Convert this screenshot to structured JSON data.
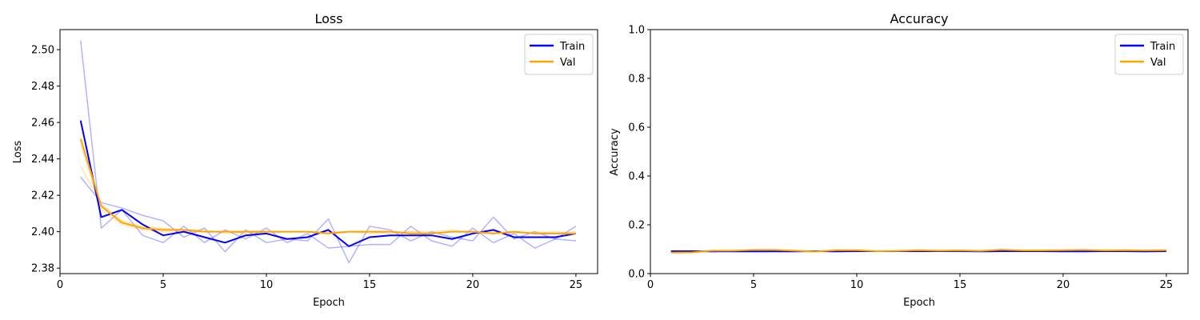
{
  "chart_data": [
    {
      "type": "line",
      "title": "Loss",
      "xlabel": "Epoch",
      "ylabel": "Loss",
      "xlim": [
        0,
        26.05
      ],
      "ylim": [
        2.377,
        2.511
      ],
      "xticks": [
        0,
        5,
        10,
        15,
        20,
        25
      ],
      "yticks": [
        2.38,
        2.4,
        2.42,
        2.44,
        2.46,
        2.48,
        2.5
      ],
      "ytick_labels": [
        "2.38",
        "2.40",
        "2.42",
        "2.44",
        "2.46",
        "2.48",
        "2.50"
      ],
      "legend_position": "top-right",
      "x": [
        1,
        2,
        3,
        4,
        5,
        6,
        7,
        8,
        9,
        10,
        11,
        12,
        13,
        14,
        15,
        16,
        17,
        18,
        19,
        20,
        21,
        22,
        23,
        24,
        25
      ],
      "series": [
        {
          "name": "Train",
          "color": "#0000ff",
          "role": "main",
          "values": [
            2.461,
            2.408,
            2.412,
            2.404,
            2.398,
            2.4,
            2.397,
            2.394,
            2.398,
            2.399,
            2.396,
            2.397,
            2.401,
            2.392,
            2.397,
            2.398,
            2.398,
            2.398,
            2.396,
            2.399,
            2.401,
            2.397,
            2.397,
            2.397,
            2.399
          ]
        },
        {
          "name": "",
          "color": "#0000ff",
          "role": "faint",
          "values": [
            2.505,
            2.402,
            2.412,
            2.398,
            2.394,
            2.403,
            2.394,
            2.401,
            2.396,
            2.402,
            2.394,
            2.399,
            2.391,
            2.392,
            2.393,
            2.393,
            2.403,
            2.395,
            2.392,
            2.402,
            2.394,
            2.399,
            2.391,
            2.396,
            2.395
          ]
        },
        {
          "name": "",
          "color": "#0000ff",
          "role": "faint",
          "values": [
            2.43,
            2.416,
            2.413,
            2.409,
            2.406,
            2.397,
            2.402,
            2.389,
            2.401,
            2.394,
            2.396,
            2.395,
            2.407,
            2.383,
            2.403,
            2.401,
            2.395,
            2.4,
            2.397,
            2.395,
            2.408,
            2.396,
            2.4,
            2.396,
            2.403
          ]
        },
        {
          "name": "Val",
          "color": "#ffa500",
          "role": "main",
          "values": [
            2.451,
            2.414,
            2.405,
            2.402,
            2.401,
            2.401,
            2.4,
            2.4,
            2.4,
            2.4,
            2.4,
            2.4,
            2.399,
            2.4,
            2.4,
            2.4,
            2.399,
            2.399,
            2.4,
            2.4,
            2.399,
            2.4,
            2.399,
            2.399,
            2.399
          ]
        },
        {
          "name": "",
          "color": "#ffa500",
          "role": "faint",
          "values": [
            2.448,
            2.412,
            2.404,
            2.401,
            2.4,
            2.4,
            2.4,
            2.4,
            2.399,
            2.4,
            2.4,
            2.4,
            2.4,
            2.4,
            2.4,
            2.399,
            2.4,
            2.4,
            2.401,
            2.399,
            2.4,
            2.399,
            2.4,
            2.399,
            2.4
          ]
        },
        {
          "name": "",
          "color": "#ffa500",
          "role": "faint",
          "values": [
            2.436,
            2.415,
            2.406,
            2.403,
            2.402,
            2.401,
            2.401,
            2.399,
            2.4,
            2.399,
            2.4,
            2.4,
            2.399,
            2.4,
            2.399,
            2.4,
            2.4,
            2.399,
            2.4,
            2.4,
            2.399,
            2.4,
            2.399,
            2.4,
            2.399
          ]
        }
      ]
    },
    {
      "type": "line",
      "title": "Accuracy",
      "xlabel": "Epoch",
      "ylabel": "Accuracy",
      "xlim": [
        0,
        26.05
      ],
      "ylim": [
        0.0,
        1.0
      ],
      "xticks": [
        0,
        5,
        10,
        15,
        20,
        25
      ],
      "yticks": [
        0.0,
        0.2,
        0.4,
        0.6,
        0.8,
        1.0
      ],
      "ytick_labels": [
        "0.0",
        "0.2",
        "0.4",
        "0.6",
        "0.8",
        "1.0"
      ],
      "legend_position": "top-right",
      "x": [
        1,
        2,
        3,
        4,
        5,
        6,
        7,
        8,
        9,
        10,
        11,
        12,
        13,
        14,
        15,
        16,
        17,
        18,
        19,
        20,
        21,
        22,
        23,
        24,
        25
      ],
      "series": [
        {
          "name": "Train",
          "color": "#0000ff",
          "role": "main",
          "values": [
            0.092,
            0.092,
            0.091,
            0.091,
            0.091,
            0.091,
            0.091,
            0.092,
            0.091,
            0.092,
            0.092,
            0.092,
            0.092,
            0.092,
            0.092,
            0.091,
            0.092,
            0.092,
            0.092,
            0.091,
            0.091,
            0.092,
            0.092,
            0.091,
            0.092
          ]
        },
        {
          "name": "",
          "color": "#0000ff",
          "role": "faint",
          "values": [
            0.093,
            0.092,
            0.092,
            0.09,
            0.091,
            0.092,
            0.09,
            0.091,
            0.092,
            0.091,
            0.093,
            0.091,
            0.091,
            0.093,
            0.092,
            0.09,
            0.091,
            0.092,
            0.093,
            0.091,
            0.092,
            0.091,
            0.093,
            0.092,
            0.091
          ]
        },
        {
          "name": "",
          "color": "#0000ff",
          "role": "faint",
          "values": [
            0.091,
            0.092,
            0.09,
            0.092,
            0.09,
            0.091,
            0.092,
            0.092,
            0.09,
            0.092,
            0.091,
            0.093,
            0.092,
            0.091,
            0.091,
            0.092,
            0.092,
            0.091,
            0.091,
            0.092,
            0.09,
            0.093,
            0.091,
            0.09,
            0.092
          ]
        },
        {
          "name": "Val",
          "color": "#ffa500",
          "role": "main",
          "values": [
            0.086,
            0.087,
            0.094,
            0.094,
            0.097,
            0.097,
            0.094,
            0.09,
            0.096,
            0.096,
            0.092,
            0.093,
            0.096,
            0.094,
            0.095,
            0.093,
            0.098,
            0.095,
            0.095,
            0.096,
            0.097,
            0.095,
            0.096,
            0.095,
            0.096
          ]
        },
        {
          "name": "",
          "color": "#ffa500",
          "role": "faint",
          "values": [
            0.085,
            0.088,
            0.095,
            0.093,
            0.098,
            0.096,
            0.095,
            0.089,
            0.097,
            0.095,
            0.093,
            0.092,
            0.097,
            0.093,
            0.096,
            0.092,
            0.099,
            0.094,
            0.096,
            0.097,
            0.096,
            0.096,
            0.095,
            0.096,
            0.095
          ]
        },
        {
          "name": "",
          "color": "#ffa500",
          "role": "faint",
          "values": [
            0.087,
            0.086,
            0.093,
            0.095,
            0.096,
            0.098,
            0.093,
            0.091,
            0.095,
            0.097,
            0.091,
            0.094,
            0.095,
            0.095,
            0.094,
            0.094,
            0.097,
            0.096,
            0.094,
            0.095,
            0.098,
            0.094,
            0.097,
            0.094,
            0.097
          ]
        }
      ]
    }
  ]
}
